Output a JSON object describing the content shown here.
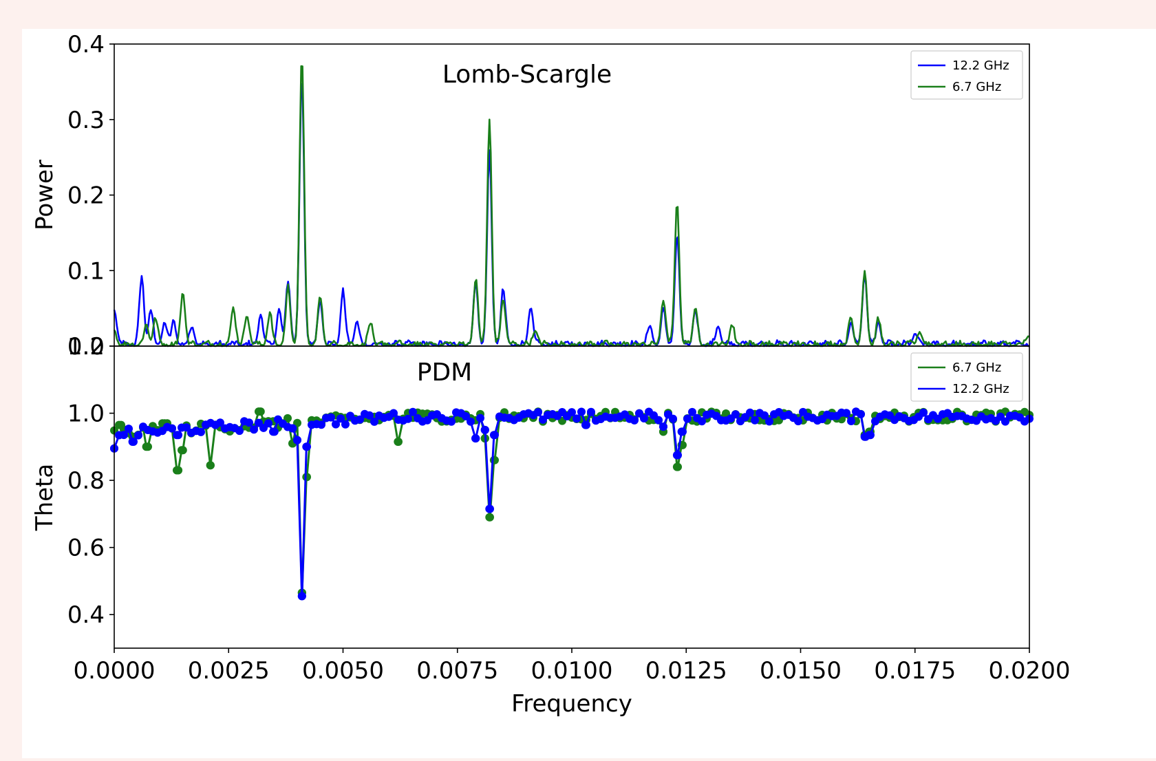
{
  "chart_data": [
    {
      "type": "line",
      "title": "Lomb-Scargle",
      "xlabel": "",
      "ylabel": "Power",
      "xlim": [
        0.0,
        0.02
      ],
      "ylim": [
        0.0,
        0.4
      ],
      "yticks": [
        "0.0",
        "0.1",
        "0.2",
        "0.3",
        "0.4"
      ],
      "legend_position": "top-right",
      "series": [
        {
          "name": "12.2 GHz",
          "color": "#0000ff",
          "peaks": [
            [
              0.0,
              0.048
            ],
            [
              0.0006,
              0.09
            ],
            [
              0.0008,
              0.045
            ],
            [
              0.0011,
              0.03
            ],
            [
              0.0013,
              0.03
            ],
            [
              0.0017,
              0.025
            ],
            [
              0.0032,
              0.04
            ],
            [
              0.0036,
              0.045
            ],
            [
              0.0038,
              0.085
            ],
            [
              0.0041,
              0.36
            ],
            [
              0.0045,
              0.06
            ],
            [
              0.005,
              0.07
            ],
            [
              0.0053,
              0.03
            ],
            [
              0.0079,
              0.08
            ],
            [
              0.0082,
              0.255
            ],
            [
              0.0085,
              0.072
            ],
            [
              0.0091,
              0.05
            ],
            [
              0.0117,
              0.025
            ],
            [
              0.012,
              0.045
            ],
            [
              0.0123,
              0.145
            ],
            [
              0.0127,
              0.045
            ],
            [
              0.0132,
              0.025
            ],
            [
              0.0161,
              0.03
            ],
            [
              0.0164,
              0.095
            ],
            [
              0.0167,
              0.03
            ],
            [
              0.0175,
              0.015
            ]
          ]
        },
        {
          "name": "6.7 GHz",
          "color": "#1a7f1a",
          "peaks": [
            [
              0.0,
              0.018
            ],
            [
              0.0007,
              0.025
            ],
            [
              0.0009,
              0.035
            ],
            [
              0.0015,
              0.07
            ],
            [
              0.0026,
              0.05
            ],
            [
              0.0029,
              0.04
            ],
            [
              0.0034,
              0.04
            ],
            [
              0.0038,
              0.075
            ],
            [
              0.0041,
              0.385
            ],
            [
              0.0045,
              0.062
            ],
            [
              0.0056,
              0.028
            ],
            [
              0.0079,
              0.085
            ],
            [
              0.0082,
              0.298
            ],
            [
              0.0085,
              0.062
            ],
            [
              0.0092,
              0.02
            ],
            [
              0.012,
              0.06
            ],
            [
              0.0123,
              0.19
            ],
            [
              0.0127,
              0.05
            ],
            [
              0.0135,
              0.025
            ],
            [
              0.0161,
              0.035
            ],
            [
              0.0164,
              0.098
            ],
            [
              0.0167,
              0.032
            ],
            [
              0.0176,
              0.018
            ],
            [
              0.02,
              0.012
            ]
          ]
        }
      ]
    },
    {
      "type": "line",
      "title": "PDM",
      "xlabel": "Frequency",
      "ylabel": "Theta",
      "xlim": [
        0.0,
        0.02
      ],
      "ylim": [
        0.3,
        1.2
      ],
      "yticks": [
        "0.4",
        "0.6",
        "0.8",
        "1.0",
        "1.2"
      ],
      "xticks": [
        "0.0000",
        "0.0025",
        "0.0050",
        "0.0075",
        "0.0100",
        "0.0125",
        "0.0150",
        "0.0175",
        "0.0200"
      ],
      "legend_position": "top-right",
      "marker": "circle",
      "series": [
        {
          "name": "6.7 GHz",
          "color": "#1a7f1a",
          "dips": [
            [
              0.00015,
              0.965
            ],
            [
              0.0004,
              0.93
            ],
            [
              0.0007,
              0.9
            ],
            [
              0.0011,
              0.97
            ],
            [
              0.0014,
              0.83
            ],
            [
              0.0015,
              0.89
            ],
            [
              0.0021,
              0.845
            ],
            [
              0.0032,
              1.005
            ],
            [
              0.0039,
              0.91
            ],
            [
              0.0041,
              0.465
            ],
            [
              0.0042,
              0.81
            ],
            [
              0.0062,
              0.915
            ],
            [
              0.0081,
              0.925
            ],
            [
              0.0082,
              0.69
            ],
            [
              0.0083,
              0.86
            ],
            [
              0.012,
              0.945
            ],
            [
              0.0123,
              0.84
            ],
            [
              0.0124,
              0.905
            ],
            [
              0.0164,
              0.935
            ],
            [
              0.0165,
              0.945
            ]
          ]
        },
        {
          "name": "12.2 GHz",
          "color": "#0000ff",
          "dips": [
            [
              0.0,
              0.895
            ],
            [
              0.0004,
              0.915
            ],
            [
              0.0014,
              0.935
            ],
            [
              0.0035,
              0.945
            ],
            [
              0.0039,
              0.955
            ],
            [
              0.004,
              0.92
            ],
            [
              0.0041,
              0.455
            ],
            [
              0.0042,
              0.9
            ],
            [
              0.0079,
              0.925
            ],
            [
              0.0081,
              0.95
            ],
            [
              0.0082,
              0.715
            ],
            [
              0.0083,
              0.935
            ],
            [
              0.0103,
              0.965
            ],
            [
              0.012,
              0.96
            ],
            [
              0.0123,
              0.875
            ],
            [
              0.0124,
              0.945
            ],
            [
              0.0164,
              0.93
            ],
            [
              0.0165,
              0.935
            ]
          ]
        }
      ]
    }
  ]
}
